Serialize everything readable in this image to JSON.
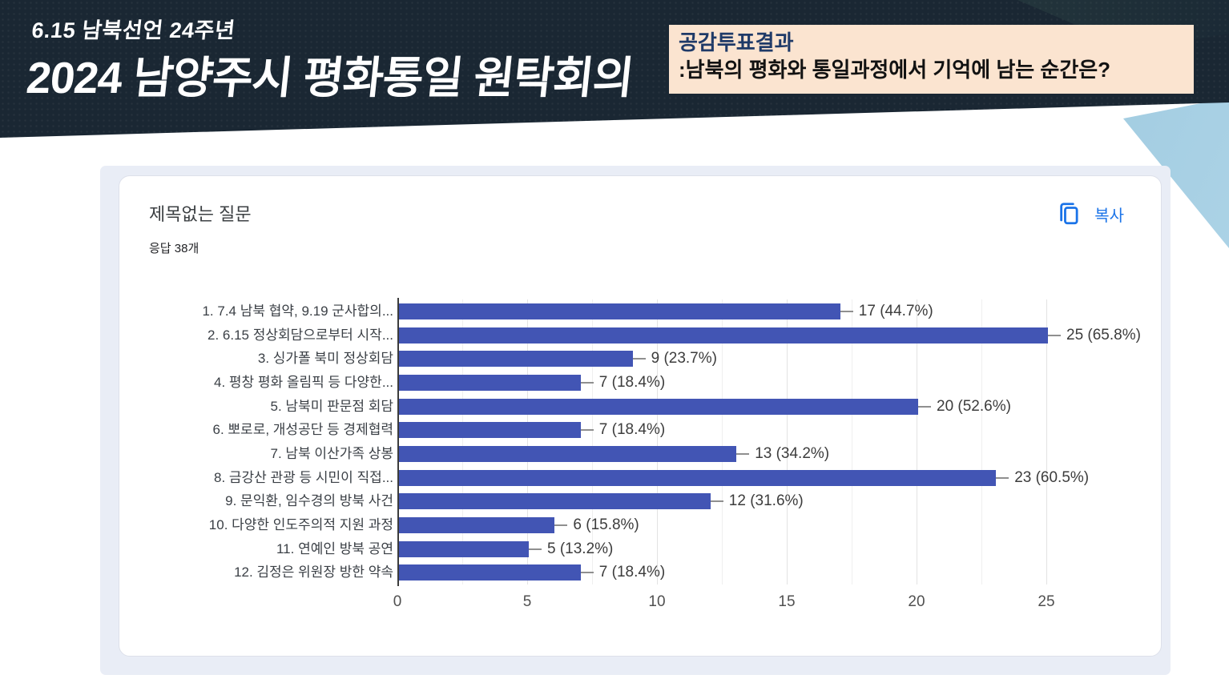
{
  "banner": {
    "kicker": "6.15 남북선언 24주년",
    "title": "2024 남양주시 평화통일 원탁회의",
    "background_color": "#1a2733",
    "note_box": {
      "background_color": "#fbe4d0",
      "title": "공감투표결과",
      "title_color": "#1f3a68",
      "subtitle": ":남북의 평화와 통일과정에서 기억에 남는 순간은?"
    }
  },
  "form_card": {
    "question_title": "제목없는 질문",
    "response_count_text": "응답 38개",
    "copy_button_label": "복사",
    "accent_color": "#1a73e8"
  },
  "chart_data": {
    "type": "bar",
    "orientation": "horizontal",
    "title": "",
    "categories": [
      "1. 7.4 남북 협약, 9.19 군사합의...",
      "2. 6.15 정상회담으로부터 시작...",
      "3. 싱가폴 북미 정상회담",
      "4. 평창 평화 올림픽 등 다양한...",
      "5. 남북미 판문점 회담",
      "6. 뽀로로, 개성공단 등 경제협력",
      "7. 남북 이산가족 상봉",
      "8. 금강산 관광 등 시민이 직접...",
      "9. 문익환, 임수경의 방북 사건",
      "10. 다양한 인도주의적 지원 과정",
      "11. 연예인 방북 공연",
      "12. 김정은 위원장 방한 약속"
    ],
    "values": [
      17,
      25,
      9,
      7,
      20,
      7,
      13,
      23,
      12,
      6,
      5,
      7
    ],
    "value_labels": [
      "17 (44.7%)",
      "25 (65.8%)",
      "9 (23.7%)",
      "7 (18.4%)",
      "20 (52.6%)",
      "7 (18.4%)",
      "13 (34.2%)",
      "23 (60.5%)",
      "12 (31.6%)",
      "6 (15.8%)",
      "5 (13.2%)",
      "7 (18.4%)"
    ],
    "xlim": [
      0,
      25
    ],
    "xticks": [
      0,
      5,
      10,
      15,
      20,
      25
    ],
    "minor_grid_step": 2.5,
    "grid": true,
    "legend": false,
    "bar_color": "#4255b4"
  }
}
